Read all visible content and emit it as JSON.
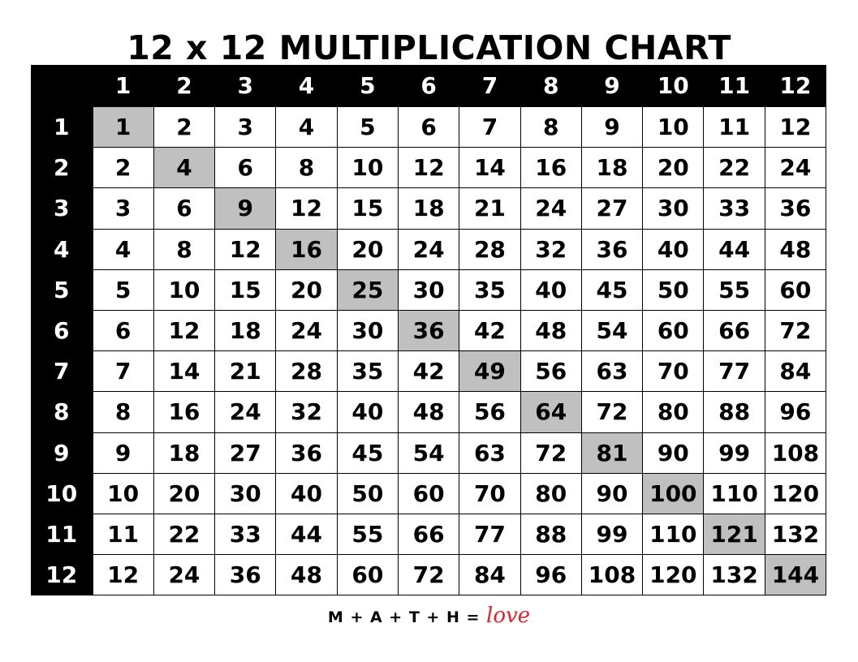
{
  "title": "12 x 12 MULTIPLICATION CHART",
  "column_headers": [
    "1",
    "2",
    "3",
    "4",
    "5",
    "6",
    "7",
    "8",
    "9",
    "10",
    "11",
    "12"
  ],
  "row_headers": [
    "1",
    "2",
    "3",
    "4",
    "5",
    "6",
    "7",
    "8",
    "9",
    "10",
    "11",
    "12"
  ],
  "rows": [
    [
      "1",
      "2",
      "3",
      "4",
      "5",
      "6",
      "7",
      "8",
      "9",
      "10",
      "11",
      "12"
    ],
    [
      "2",
      "4",
      "6",
      "8",
      "10",
      "12",
      "14",
      "16",
      "18",
      "20",
      "22",
      "24"
    ],
    [
      "3",
      "6",
      "9",
      "12",
      "15",
      "18",
      "21",
      "24",
      "27",
      "30",
      "33",
      "36"
    ],
    [
      "4",
      "8",
      "12",
      "16",
      "20",
      "24",
      "28",
      "32",
      "36",
      "40",
      "44",
      "48"
    ],
    [
      "5",
      "10",
      "15",
      "20",
      "25",
      "30",
      "35",
      "40",
      "45",
      "50",
      "55",
      "60"
    ],
    [
      "6",
      "12",
      "18",
      "24",
      "30",
      "36",
      "42",
      "48",
      "54",
      "60",
      "66",
      "72"
    ],
    [
      "7",
      "14",
      "21",
      "28",
      "35",
      "42",
      "49",
      "56",
      "63",
      "70",
      "77",
      "84"
    ],
    [
      "8",
      "16",
      "24",
      "32",
      "40",
      "48",
      "56",
      "64",
      "72",
      "80",
      "88",
      "96"
    ],
    [
      "9",
      "18",
      "27",
      "36",
      "45",
      "54",
      "63",
      "72",
      "81",
      "90",
      "99",
      "108"
    ],
    [
      "10",
      "20",
      "30",
      "40",
      "50",
      "60",
      "70",
      "80",
      "90",
      "100",
      "110",
      "120"
    ],
    [
      "11",
      "22",
      "33",
      "44",
      "55",
      "66",
      "77",
      "88",
      "99",
      "110",
      "121",
      "132"
    ],
    [
      "12",
      "24",
      "36",
      "48",
      "60",
      "72",
      "84",
      "96",
      "108",
      "120",
      "132",
      "144"
    ]
  ],
  "highlight_color": "#c0c0c0",
  "footer": {
    "text": "M + A + T + H =",
    "love": "love",
    "love_color": "#e8202a"
  }
}
